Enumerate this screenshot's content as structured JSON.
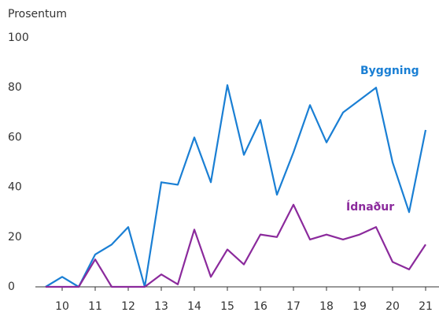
{
  "chart_data": {
    "type": "line",
    "y_label": "Prosentum",
    "x": [
      9.5,
      10,
      10.5,
      11,
      11.5,
      12,
      12.5,
      13,
      13.5,
      14,
      14.5,
      15,
      15.5,
      16,
      16.5,
      17,
      17.5,
      18,
      18.5,
      19,
      19.5,
      20,
      20.5,
      21
    ],
    "series": [
      {
        "name": "Byggning",
        "color": "#1a7fd4",
        "values": [
          0,
          4,
          0,
          13,
          17,
          24,
          0,
          42,
          41,
          60,
          42,
          81,
          53,
          67,
          37,
          54,
          73,
          58,
          70,
          75,
          80,
          50,
          30,
          63
        ]
      },
      {
        "name": "Ídnaður",
        "color": "#8b2a9c",
        "values": [
          0,
          0,
          0,
          11,
          0,
          0,
          0,
          5,
          1,
          23,
          4,
          15,
          9,
          21,
          20,
          33,
          19,
          21,
          19,
          21,
          24,
          10,
          7,
          17
        ]
      }
    ],
    "xlim": [
      9.5,
      21
    ],
    "xticks": [
      10,
      11,
      12,
      13,
      14,
      15,
      16,
      17,
      18,
      19,
      20,
      21
    ],
    "ylim": [
      0,
      100
    ],
    "yticks": [
      0,
      20,
      40,
      60,
      80,
      100
    ],
    "grid": false
  }
}
